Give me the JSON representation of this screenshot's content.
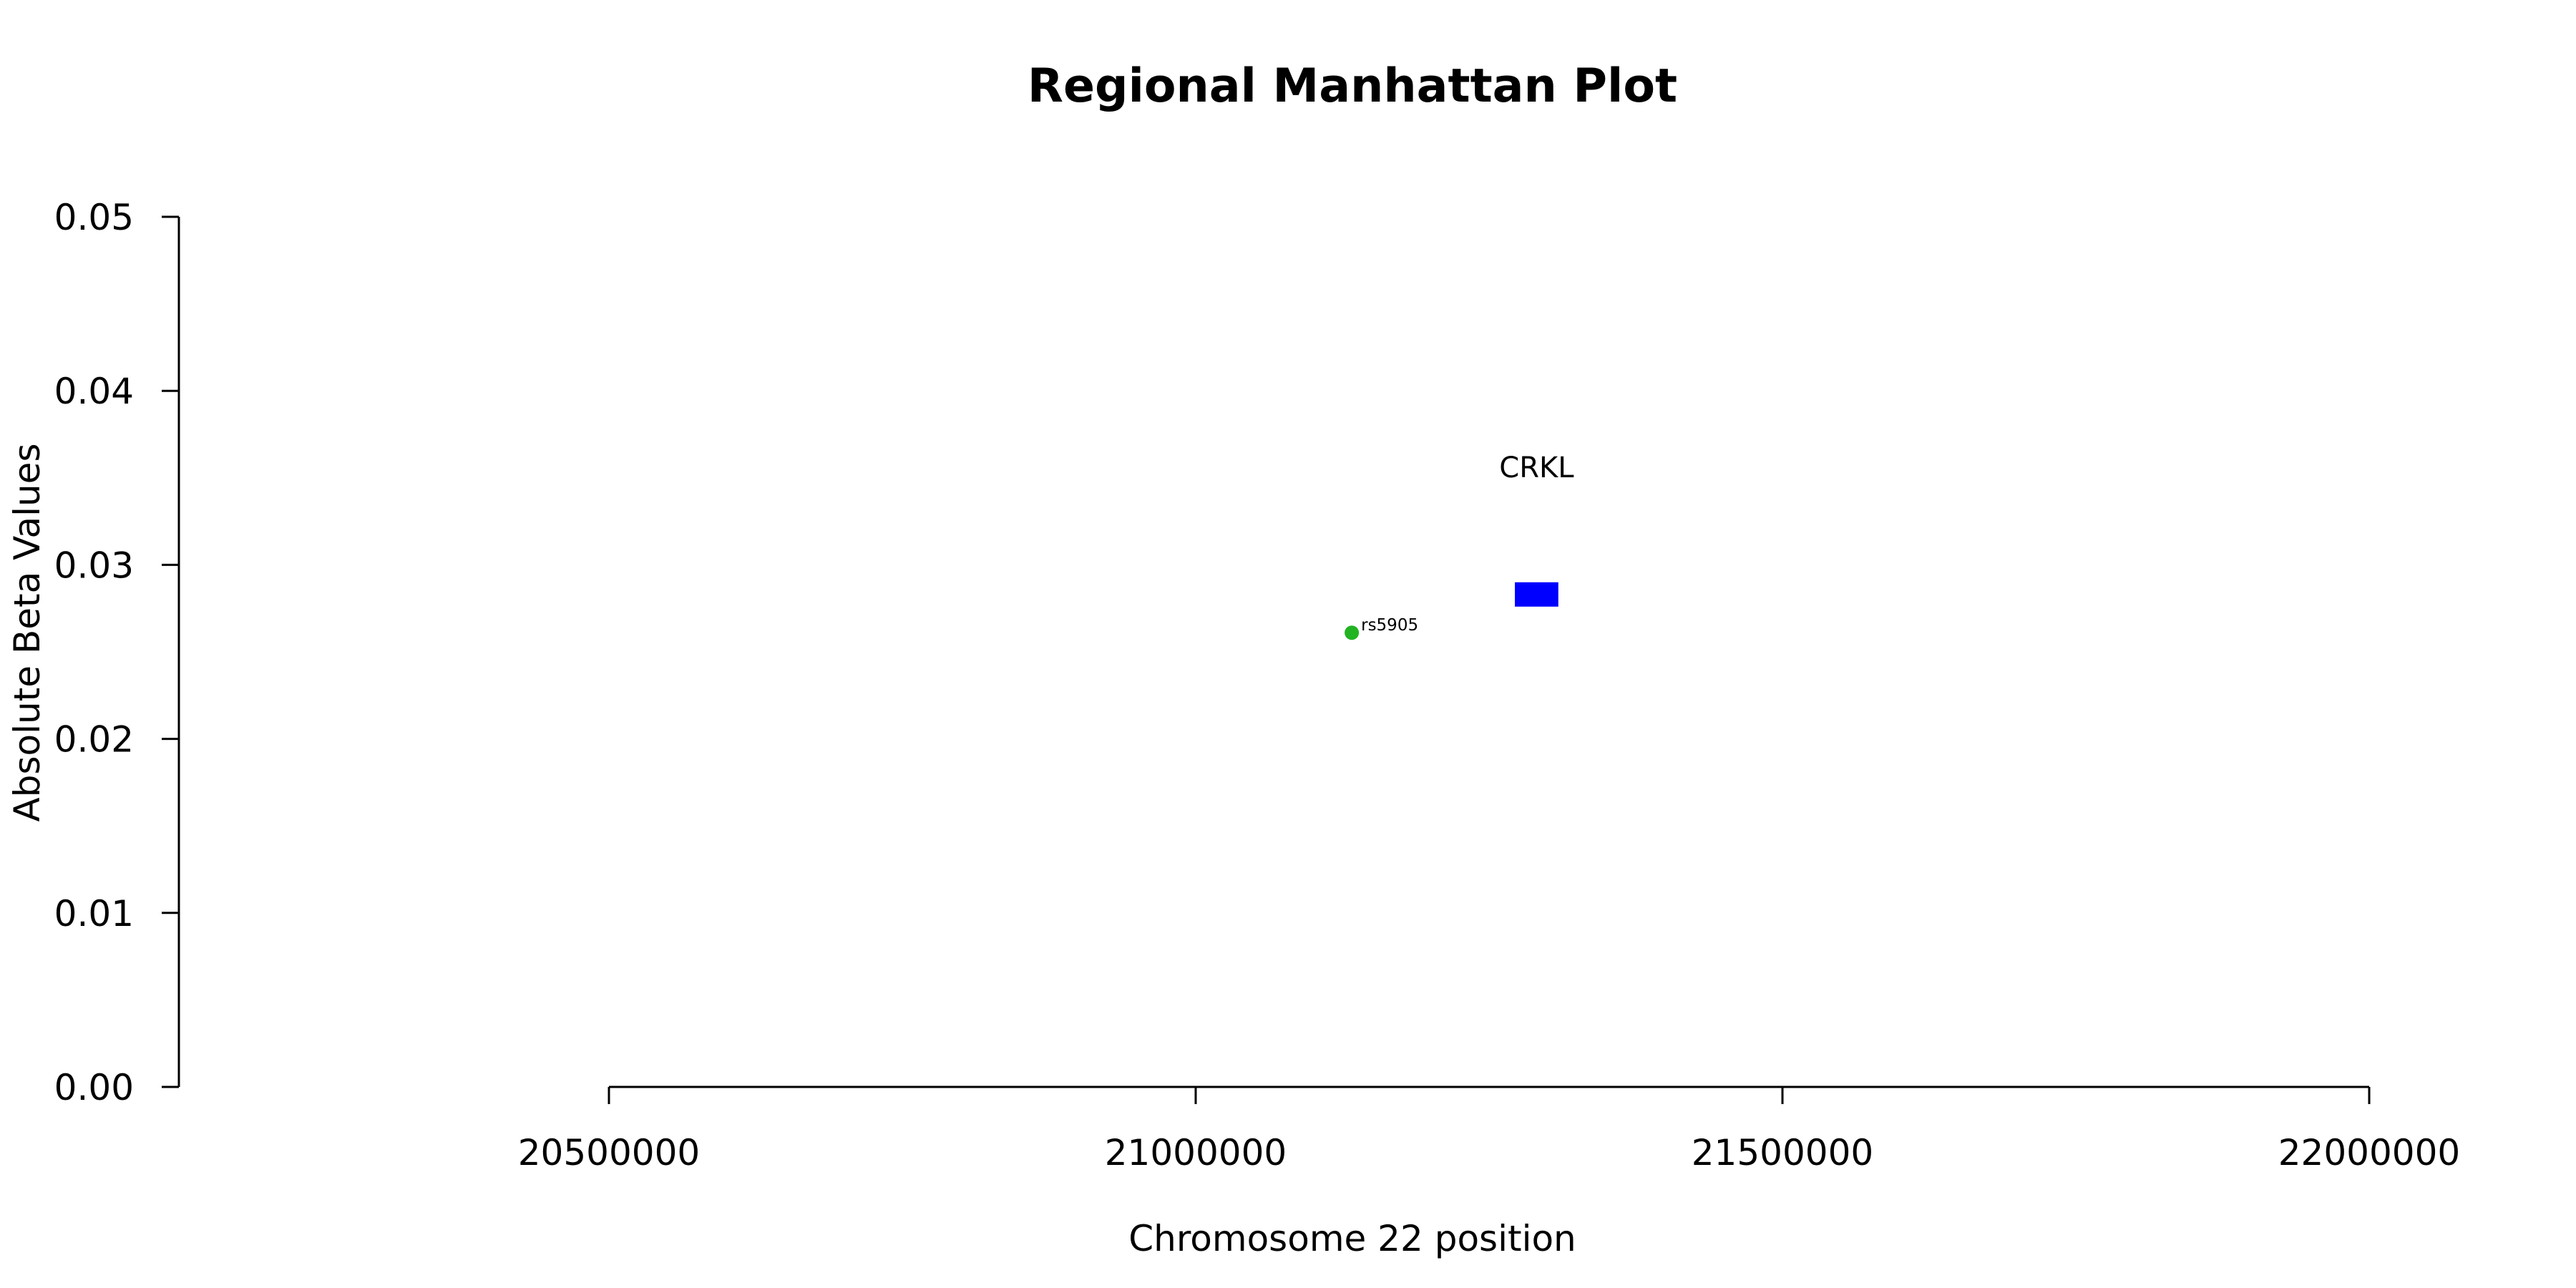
{
  "chart_data": {
    "type": "scatter",
    "title": "Regional Manhattan Plot",
    "xlabel": "Chromosome 22 position",
    "ylabel": "Absolute Beta Values",
    "xlim": [
      20500000,
      22000000
    ],
    "ylim": [
      0,
      0.05
    ],
    "x_ticks": [
      20500000,
      21000000,
      21500000,
      22000000
    ],
    "x_tick_labels": [
      "20500000",
      "21000000",
      "21500000",
      "22000000"
    ],
    "y_ticks": [
      0,
      0.01,
      0.02,
      0.03,
      0.04,
      0.05
    ],
    "y_tick_labels": [
      "0.00",
      "0.01",
      "0.02",
      "0.03",
      "0.04",
      "0.05"
    ],
    "grid": false,
    "points": [
      {
        "label": "rs5905",
        "x": 21133000,
        "y": 0.0261,
        "color": "#22b322"
      }
    ],
    "genes": [
      {
        "name": "CRKL",
        "start": 21272000,
        "end": 21309000,
        "y_bottom": 0.0276,
        "y_top": 0.029,
        "label_y": 0.0356,
        "color": "#0000ff"
      }
    ]
  }
}
